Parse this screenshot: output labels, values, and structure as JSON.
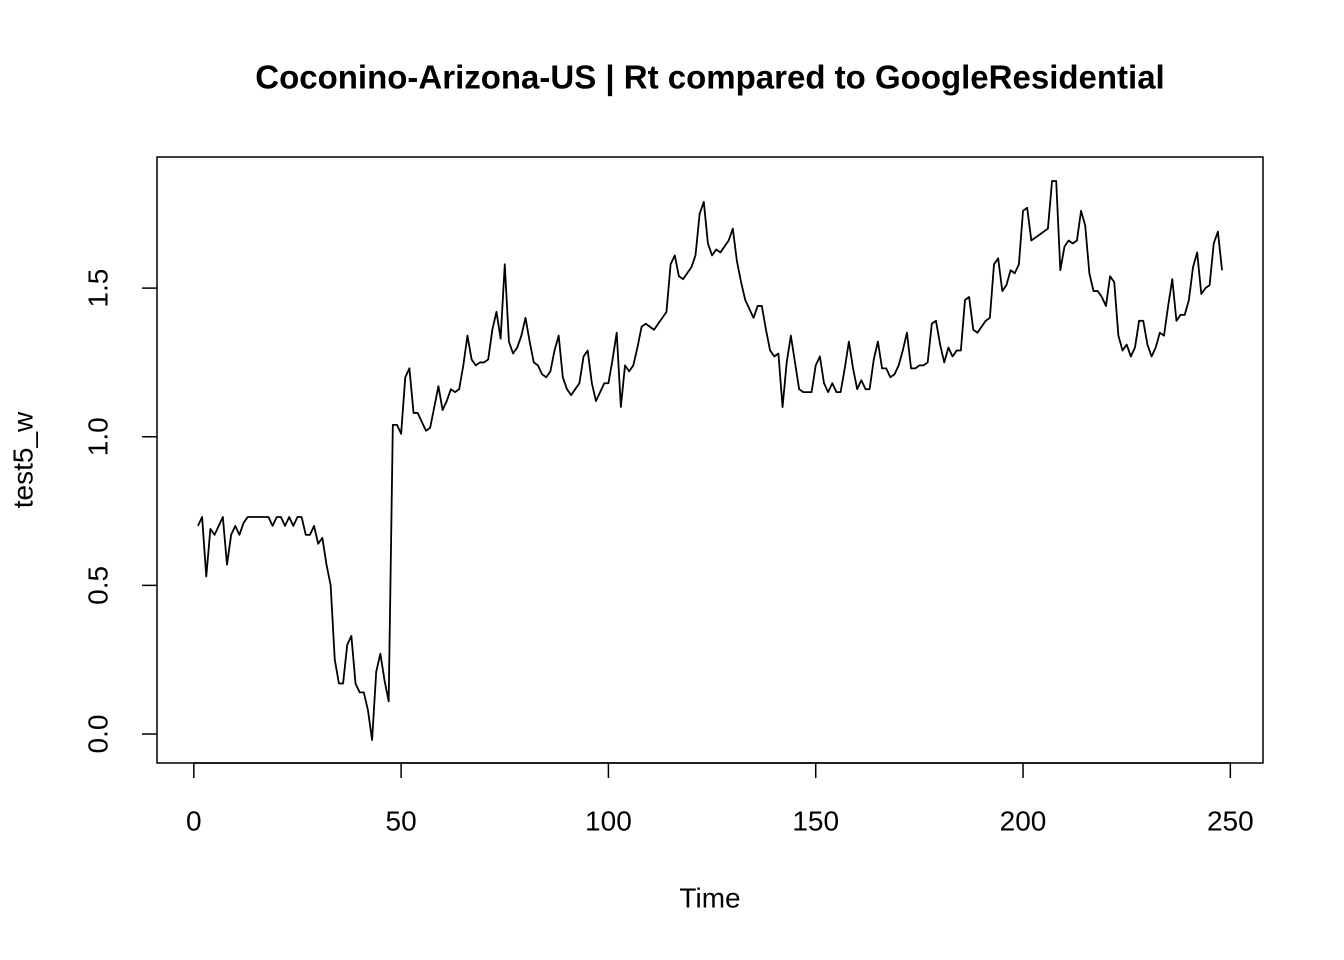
{
  "chart_data": {
    "type": "line",
    "title": "Coconino-Arizona-US | Rt compared to GoogleResidential",
    "xlabel": "Time",
    "ylabel": "test5_w",
    "color": "#000000",
    "xlim": [
      -8.88,
      257.88
    ],
    "ylim": [
      -0.0975,
      1.941
    ],
    "xticks": [
      0,
      50,
      100,
      150,
      200,
      250
    ],
    "yticks": [
      {
        "value": 0,
        "label": "0.0"
      },
      0.5,
      {
        "value": 1,
        "label": "1.0"
      },
      1.5
    ],
    "x": [
      1,
      2,
      3,
      4,
      5,
      6,
      7,
      8,
      9,
      10,
      11,
      12,
      13,
      14,
      15,
      16,
      17,
      18,
      19,
      20,
      21,
      22,
      23,
      24,
      25,
      26,
      27,
      28,
      29,
      30,
      31,
      32,
      33,
      34,
      35,
      36,
      37,
      38,
      39,
      40,
      41,
      42,
      43,
      44,
      45,
      46,
      47,
      48,
      49,
      50,
      51,
      52,
      53,
      54,
      55,
      56,
      57,
      58,
      59,
      60,
      61,
      62,
      63,
      64,
      65,
      66,
      67,
      68,
      69,
      70,
      71,
      72,
      73,
      74,
      75,
      76,
      77,
      78,
      79,
      80,
      81,
      82,
      83,
      84,
      85,
      86,
      87,
      88,
      89,
      90,
      91,
      92,
      93,
      94,
      95,
      96,
      97,
      98,
      99,
      100,
      101,
      102,
      103,
      104,
      105,
      106,
      107,
      108,
      109,
      110,
      111,
      112,
      113,
      114,
      115,
      116,
      117,
      118,
      119,
      120,
      121,
      122,
      123,
      124,
      125,
      126,
      127,
      128,
      129,
      130,
      131,
      132,
      133,
      134,
      135,
      136,
      137,
      138,
      139,
      140,
      141,
      142,
      143,
      144,
      145,
      146,
      147,
      148,
      149,
      150,
      151,
      152,
      153,
      154,
      155,
      156,
      157,
      158,
      159,
      160,
      161,
      162,
      163,
      164,
      165,
      166,
      167,
      168,
      169,
      170,
      171,
      172,
      173,
      174,
      175,
      176,
      177,
      178,
      179,
      180,
      181,
      182,
      183,
      184,
      185,
      186,
      187,
      188,
      189,
      190,
      191,
      192,
      193,
      194,
      195,
      196,
      197,
      198,
      199,
      200,
      201,
      202,
      203,
      204,
      205,
      206,
      207,
      208,
      209,
      210,
      211,
      212,
      213,
      214,
      215,
      216,
      217,
      218,
      219,
      220,
      221,
      222,
      223,
      224,
      225,
      226,
      227,
      228,
      229,
      230,
      231,
      232,
      233,
      234,
      235,
      236,
      237,
      238,
      239,
      240,
      241,
      242,
      243,
      244,
      245,
      246,
      247,
      248
    ],
    "values": [
      0.7,
      0.73,
      0.53,
      0.69,
      0.67,
      0.7,
      0.73,
      0.57,
      0.67,
      0.7,
      0.67,
      0.71,
      0.73,
      0.73,
      0.73,
      0.73,
      0.73,
      0.73,
      0.7,
      0.73,
      0.73,
      0.7,
      0.73,
      0.7,
      0.73,
      0.73,
      0.67,
      0.67,
      0.7,
      0.64,
      0.66,
      0.57,
      0.5,
      0.25,
      0.17,
      0.17,
      0.3,
      0.33,
      0.17,
      0.14,
      0.14,
      0.08,
      -0.02,
      0.21,
      0.27,
      0.18,
      0.11,
      1.04,
      1.04,
      1.01,
      1.2,
      1.23,
      1.08,
      1.08,
      1.05,
      1.02,
      1.03,
      1.1,
      1.17,
      1.09,
      1.12,
      1.16,
      1.15,
      1.16,
      1.24,
      1.34,
      1.26,
      1.24,
      1.25,
      1.25,
      1.26,
      1.36,
      1.42,
      1.33,
      1.58,
      1.32,
      1.28,
      1.3,
      1.34,
      1.4,
      1.32,
      1.25,
      1.24,
      1.21,
      1.2,
      1.22,
      1.29,
      1.34,
      1.2,
      1.16,
      1.14,
      1.16,
      1.18,
      1.27,
      1.29,
      1.18,
      1.12,
      1.15,
      1.18,
      1.18,
      1.26,
      1.35,
      1.1,
      1.24,
      1.22,
      1.24,
      1.3,
      1.37,
      1.38,
      1.37,
      1.36,
      1.38,
      1.4,
      1.42,
      1.58,
      1.61,
      1.54,
      1.53,
      1.55,
      1.57,
      1.61,
      1.75,
      1.79,
      1.65,
      1.61,
      1.63,
      1.62,
      1.64,
      1.66,
      1.7,
      1.59,
      1.52,
      1.46,
      1.43,
      1.4,
      1.44,
      1.44,
      1.36,
      1.29,
      1.27,
      1.28,
      1.1,
      1.25,
      1.34,
      1.25,
      1.16,
      1.15,
      1.15,
      1.15,
      1.24,
      1.27,
      1.18,
      1.15,
      1.18,
      1.15,
      1.15,
      1.23,
      1.32,
      1.23,
      1.16,
      1.19,
      1.16,
      1.16,
      1.26,
      1.32,
      1.23,
      1.23,
      1.2,
      1.21,
      1.24,
      1.29,
      1.35,
      1.23,
      1.23,
      1.24,
      1.24,
      1.25,
      1.38,
      1.39,
      1.31,
      1.25,
      1.3,
      1.27,
      1.29,
      1.29,
      1.46,
      1.47,
      1.36,
      1.35,
      1.37,
      1.39,
      1.4,
      1.58,
      1.6,
      1.49,
      1.51,
      1.56,
      1.55,
      1.58,
      1.76,
      1.77,
      1.66,
      1.67,
      1.68,
      1.69,
      1.7,
      1.86,
      1.86,
      1.56,
      1.64,
      1.66,
      1.65,
      1.66,
      1.76,
      1.71,
      1.55,
      1.49,
      1.49,
      1.47,
      1.44,
      1.54,
      1.52,
      1.34,
      1.29,
      1.31,
      1.27,
      1.3,
      1.39,
      1.39,
      1.31,
      1.27,
      1.3,
      1.35,
      1.34,
      1.44,
      1.53,
      1.39,
      1.41,
      1.41,
      1.46,
      1.57,
      1.62,
      1.48,
      1.5,
      1.51,
      1.65,
      1.69,
      1.56
    ]
  }
}
